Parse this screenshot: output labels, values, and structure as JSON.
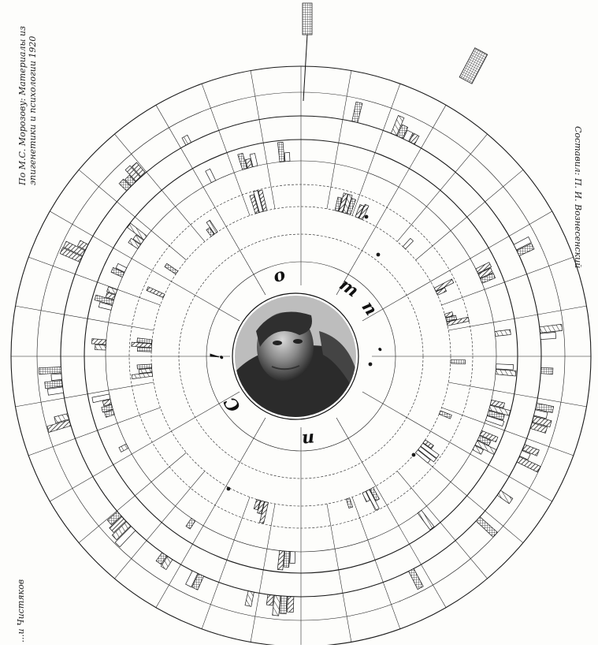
{
  "credits": {
    "top_left": "По М.С. Морозову: Материалы из",
    "top_left_2": "эпигенетики и психологии  1920",
    "right": "Составил: П. И. Вознесенский",
    "bottom_left": "...и Чистяков",
    "bottom_right": ""
  },
  "center_letters": [
    {
      "text": "m",
      "angle": -55
    },
    {
      "text": "o",
      "angle": -105
    },
    {
      "text": "!",
      "angle": -180
    },
    {
      "text": "C",
      "angle": -215
    },
    {
      "text": "n",
      "angle": -275
    },
    {
      "text": ".",
      "angle": -5
    },
    {
      "text": "n",
      "angle": -35
    }
  ],
  "colors": {
    "ink": "#1a1a1a",
    "paper": "#fdfdfb",
    "hatch": "#333333"
  },
  "icons": [
    "portrait-medallion"
  ]
}
